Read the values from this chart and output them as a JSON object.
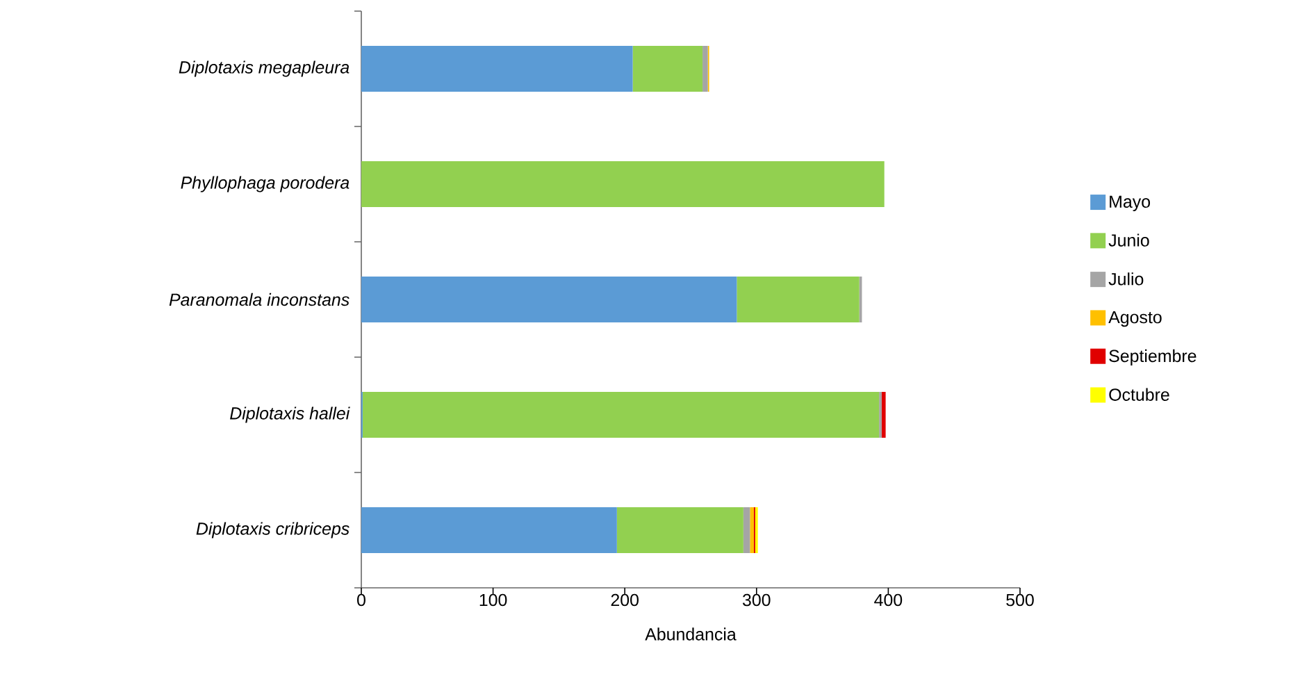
{
  "chart_data": {
    "type": "bar",
    "orientation": "horizontal",
    "stacked": true,
    "xlabel": "Abundancia",
    "categories": [
      "Diplotaxis megapleura",
      "Phyllophaga porodera",
      "Paranomala inconstans",
      "Diplotaxis hallei",
      "Diplotaxis cribriceps"
    ],
    "series": [
      {
        "name": "Mayo",
        "color": "#5b9bd5",
        "values": [
          206,
          0,
          285,
          1,
          194
        ]
      },
      {
        "name": "Junio",
        "color": "#92d050",
        "values": [
          53,
          397,
          93,
          392,
          96
        ]
      },
      {
        "name": "Julio",
        "color": "#a5a5a5",
        "values": [
          4,
          0,
          2,
          2,
          5
        ]
      },
      {
        "name": "Agosto",
        "color": "#ffc000",
        "values": [
          1,
          0,
          0,
          0,
          3
        ]
      },
      {
        "name": "Septiembre",
        "color": "#e00000",
        "values": [
          0,
          0,
          0,
          3,
          1
        ]
      },
      {
        "name": "Octubre",
        "color": "#ffff00",
        "values": [
          0,
          0,
          0,
          0,
          2
        ]
      }
    ],
    "xlim": [
      0,
      500
    ],
    "xticks": [
      0,
      100,
      200,
      300,
      400,
      500
    ],
    "grid": false,
    "legend": "right"
  }
}
